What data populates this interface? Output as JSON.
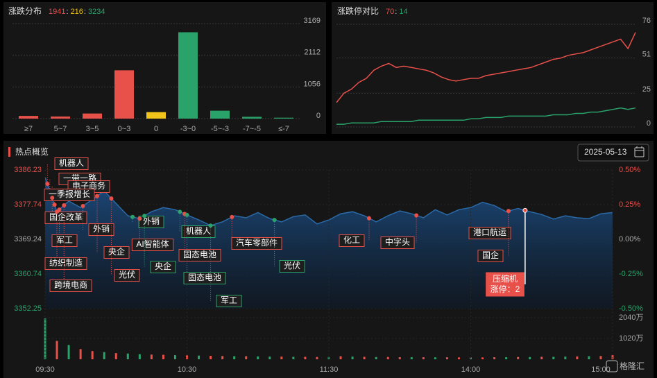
{
  "chart_data": [
    {
      "type": "bar",
      "title": "涨跌分布",
      "summary": [
        1941,
        216,
        3234
      ],
      "summary_colors": [
        "#e8504a",
        "#f0c419",
        "#2aa36b"
      ],
      "separator": ":",
      "categories": [
        "≥7",
        "5~7",
        "3~5",
        "0~3",
        "0",
        "-3~0",
        "-5~-3",
        "-7~-5",
        "≤-7"
      ],
      "values": [
        90,
        70,
        170,
        1611,
        216,
        2880,
        264,
        60,
        30
      ],
      "colors": [
        "#e8504a",
        "#e8504a",
        "#e8504a",
        "#e8504a",
        "#f0c419",
        "#2aa36b",
        "#2aa36b",
        "#2aa36b",
        "#2aa36b"
      ],
      "ylim": [
        0,
        3169
      ],
      "yticks": [
        0,
        1056,
        2112,
        3169
      ],
      "grid": true
    },
    {
      "type": "line",
      "title": "涨跌停对比",
      "summary": [
        70,
        14
      ],
      "summary_colors": [
        "#e8504a",
        "#2aa36b"
      ],
      "separator": ":",
      "series": [
        {
          "color": "#e8504a",
          "values": [
            18,
            25,
            28,
            33,
            36,
            42,
            45,
            47,
            44,
            45,
            44,
            43,
            42,
            40,
            37,
            35,
            34,
            35,
            36,
            36,
            38,
            39,
            40,
            41,
            42,
            43,
            44,
            46,
            48,
            50,
            51,
            53,
            54,
            55,
            57,
            59,
            61,
            63,
            65,
            58,
            70
          ]
        },
        {
          "color": "#2aa36b",
          "values": [
            2,
            2,
            3,
            3,
            3,
            3,
            4,
            4,
            4,
            4,
            4,
            5,
            5,
            5,
            5,
            5,
            5,
            5,
            6,
            6,
            7,
            7,
            7,
            8,
            8,
            8,
            8,
            8,
            8,
            9,
            9,
            9,
            10,
            10,
            11,
            11,
            12,
            13,
            14,
            13,
            14
          ]
        }
      ],
      "ylim": [
        0,
        76
      ],
      "yticks": [
        0,
        25,
        51,
        76
      ],
      "grid": true
    },
    {
      "type": "area",
      "title": "热点概览",
      "date": "2025-05-13",
      "x": [
        0,
        5,
        10,
        15,
        20,
        25,
        30,
        35,
        40,
        45,
        50,
        55,
        60,
        65,
        70,
        75,
        80,
        85,
        90,
        95,
        100,
        105,
        110,
        115,
        120,
        125,
        130,
        135,
        140,
        145,
        150,
        155,
        160,
        165,
        170,
        175,
        180,
        185,
        190,
        195,
        200,
        205,
        210,
        215,
        220,
        225,
        230,
        235,
        240
      ],
      "xlim": [
        0,
        240
      ],
      "xticks": [
        {
          "value": 0,
          "label": "09:30"
        },
        {
          "value": 60,
          "label": "10:30"
        },
        {
          "value": 120,
          "label": "11:30"
        },
        {
          "value": 180,
          "label": "14:00"
        },
        {
          "value": 240,
          "label": "15:00"
        }
      ],
      "series": [
        {
          "color": "#2a6aa8",
          "values": [
            3384.5,
            3376,
            3378.6,
            3377,
            3379,
            3381.1,
            3378,
            3375,
            3374.3,
            3376,
            3377,
            3376.5,
            3375.2,
            3374,
            3372.6,
            3373.5,
            3375,
            3374.5,
            3375.8,
            3374.3,
            3373.5,
            3374.8,
            3375.2,
            3373,
            3374,
            3375.5,
            3376,
            3375,
            3373.5,
            3375,
            3376.2,
            3375.5,
            3374.5,
            3376.5,
            3375.2,
            3376.5,
            3377,
            3378.3,
            3377.5,
            3376,
            3376.8,
            3376,
            3375.3,
            3374.2,
            3375,
            3374.5,
            3374.3,
            3375.5,
            3375.8
          ]
        }
      ],
      "ylim": [
        3352.25,
        3386.23
      ],
      "yticks": [
        3352.25,
        3360.74,
        3369.24,
        3377.74,
        3386.23
      ],
      "ytick_colors": [
        "#2aa36b",
        "#2aa36b",
        "#aaaaaa",
        "#e8504a",
        "#e8504a"
      ],
      "y2lim": [
        -0.5,
        0.5
      ],
      "y2ticks": [
        {
          "value": -0.5,
          "label": "-0.50%"
        },
        {
          "value": -0.25,
          "label": "-0.25%"
        },
        {
          "value": 0,
          "label": "0.00%"
        },
        {
          "value": 0.25,
          "label": "0.25%"
        },
        {
          "value": 0.5,
          "label": "0.50%"
        }
      ],
      "volume": {
        "ylim": [
          0,
          2040
        ],
        "yticks": [
          {
            "value": 1020,
            "label": "1020万"
          },
          {
            "value": 2040,
            "label": "2040万"
          }
        ],
        "values": [
          2000,
          900,
          700,
          500,
          400,
          350,
          300,
          280,
          250,
          230,
          220,
          200,
          190,
          180,
          170,
          160,
          150,
          150,
          140,
          130,
          130,
          120,
          120,
          110,
          110,
          150,
          130,
          120,
          110,
          110,
          100,
          100,
          100,
          95,
          95,
          90,
          90,
          90,
          100,
          100,
          110,
          110,
          120,
          120,
          130,
          140,
          150,
          160,
          200
        ],
        "colors": [
          "#2aa36b",
          "#e8504a",
          "#2aa36b",
          "#e8504a",
          "#e8504a",
          "#2aa36b",
          "#e8504a",
          "#2aa36b",
          "#2aa36b",
          "#e8504a",
          "#e8504a",
          "#2aa36b",
          "#e8504a",
          "#2aa36b",
          "#e8504a",
          "#e8504a",
          "#2aa36b",
          "#e8504a",
          "#2aa36b",
          "#2aa36b",
          "#e8504a",
          "#2aa36b",
          "#e8504a",
          "#e8504a",
          "#2aa36b",
          "#e8504a",
          "#2aa36b",
          "#e8504a",
          "#2aa36b",
          "#e8504a",
          "#e8504a",
          "#2aa36b",
          "#e8504a",
          "#2aa36b",
          "#e8504a",
          "#e8504a",
          "#2aa36b",
          "#e8504a",
          "#e8504a",
          "#2aa36b",
          "#e8504a",
          "#2aa36b",
          "#e8504a",
          "#2aa36b",
          "#2aa36b",
          "#e8504a",
          "#2aa36b",
          "#e8504a",
          "#e8504a"
        ]
      },
      "annotations": [
        {
          "text": "机器人",
          "x": 1,
          "color": "#e8504a"
        },
        {
          "text": "一带一路",
          "x": 2,
          "color": "#e8504a"
        },
        {
          "text": "电子商务",
          "x": 3,
          "color": "#e8504a"
        },
        {
          "text": "一季报增长",
          "x": 4,
          "color": "#e8504a"
        },
        {
          "text": "国企改革",
          "x": 3,
          "color": "#e8504a"
        },
        {
          "text": "军工",
          "x": 6,
          "color": "#e8504a"
        },
        {
          "text": "纺织制造",
          "x": 5,
          "color": "#e8504a"
        },
        {
          "text": "跨境电商",
          "x": 8,
          "color": "#e8504a"
        },
        {
          "text": "外销",
          "x": 16,
          "color": "#e8504a"
        },
        {
          "text": "央企",
          "x": 22,
          "color": "#e8504a"
        },
        {
          "text": "光伏",
          "x": 28,
          "color": "#e8504a"
        },
        {
          "text": "外销",
          "x": 37,
          "color": "#2aa36b"
        },
        {
          "text": "AI智能体",
          "x": 40,
          "color": "#e8504a"
        },
        {
          "text": "央企",
          "x": 42,
          "color": "#2aa36b"
        },
        {
          "text": "机器人",
          "x": 57,
          "color": "#2aa36b"
        },
        {
          "text": "固态电池",
          "x": 59,
          "color": "#e8504a"
        },
        {
          "text": "固态电池",
          "x": 60,
          "color": "#2aa36b"
        },
        {
          "text": "军工",
          "x": 70,
          "color": "#2aa36b"
        },
        {
          "text": "汽车零部件",
          "x": 79,
          "color": "#e8504a"
        },
        {
          "text": "光伏",
          "x": 97,
          "color": "#2aa36b"
        },
        {
          "text": "化工",
          "x": 137,
          "color": "#e8504a"
        },
        {
          "text": "中字头",
          "x": 157,
          "color": "#e8504a"
        },
        {
          "text": "港口航运",
          "x": 196,
          "color": "#e8504a"
        },
        {
          "text": "国企",
          "x": 196,
          "color": "#e8504a"
        },
        {
          "text": "压缩机",
          "sub": "涨停：2",
          "x": 203,
          "color": "#e8504a"
        }
      ]
    }
  ]
}
